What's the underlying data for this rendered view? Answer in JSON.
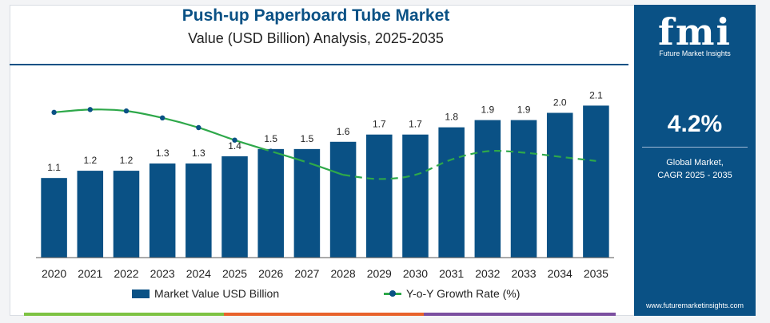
{
  "chart_data": {
    "type": "bar",
    "title": "Push-up Paperboard Tube Market",
    "subtitle": "Value (USD Billion) Analysis, 2025-2035",
    "categories": [
      "2020",
      "2021",
      "2022",
      "2023",
      "2024",
      "2025",
      "2026",
      "2027",
      "2028",
      "2029",
      "2030",
      "2031",
      "2032",
      "2033",
      "2034",
      "2035"
    ],
    "series": [
      {
        "name": "Market Value USD Billion",
        "type": "bar",
        "values": [
          1.1,
          1.2,
          1.2,
          1.3,
          1.3,
          1.4,
          1.5,
          1.5,
          1.6,
          1.7,
          1.7,
          1.8,
          1.9,
          1.9,
          2.0,
          2.1
        ],
        "labels": [
          "1.1",
          "1.2",
          "1.2",
          "1.3",
          "1.3",
          "1.4",
          "1.5",
          "1.5",
          "1.6",
          "1.7",
          "1.7",
          "1.8",
          "1.9",
          "1.9",
          "2.0",
          "2.1"
        ]
      },
      {
        "name": "Y-o-Y Growth Rate (%)",
        "type": "line",
        "values": [
          5.2,
          5.3,
          5.25,
          5.0,
          4.65,
          4.2,
          3.8,
          3.4,
          2.95,
          2.8,
          2.95,
          3.5,
          3.8,
          3.75,
          3.6,
          3.45
        ]
      }
    ],
    "ylim": [
      0,
      2.3
    ],
    "grid": false,
    "legend": "bottom"
  },
  "colors": {
    "bar": "#0a5185",
    "line": "#2ea84a",
    "marker": "#0a5185",
    "panel": "#0a5185"
  },
  "side_panel": {
    "logo": "fmi",
    "logo_sub": "Future Market Insights",
    "cagr_value": "4.2%",
    "cagr_label_1": "Global Market,",
    "cagr_label_2": "CAGR 2025 - 2035",
    "website": "www.futuremarketinsights.com"
  }
}
